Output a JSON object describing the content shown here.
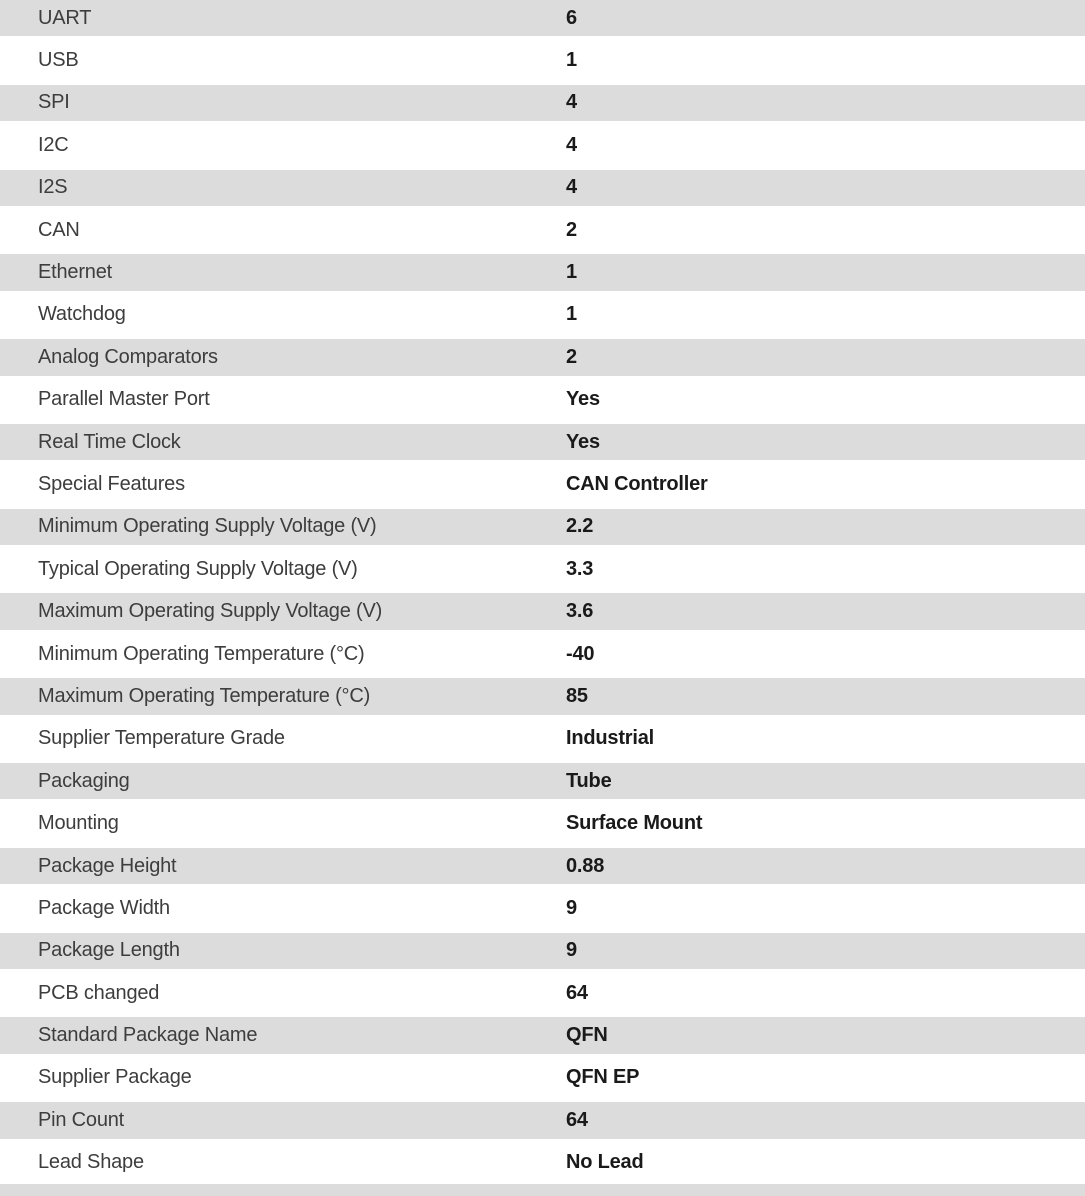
{
  "theme": {
    "page_bg": "#ffffff",
    "row_alt_bg": "#dcdcdc",
    "label_color": "#3d3d3d",
    "value_color": "#1a1a1a"
  },
  "spec_table": {
    "rows": [
      {
        "label": "UART",
        "value": "6"
      },
      {
        "label": "USB",
        "value": "1"
      },
      {
        "label": "SPI",
        "value": "4"
      },
      {
        "label": "I2C",
        "value": "4"
      },
      {
        "label": "I2S",
        "value": "4"
      },
      {
        "label": "CAN",
        "value": "2"
      },
      {
        "label": "Ethernet",
        "value": "1"
      },
      {
        "label": "Watchdog",
        "value": "1"
      },
      {
        "label": "Analog Comparators",
        "value": "2"
      },
      {
        "label": "Parallel Master Port",
        "value": "Yes"
      },
      {
        "label": "Real Time Clock",
        "value": "Yes"
      },
      {
        "label": "Special Features",
        "value": "CAN Controller"
      },
      {
        "label": "Minimum Operating Supply Voltage (V)",
        "value": "2.2"
      },
      {
        "label": "Typical Operating Supply Voltage (V)",
        "value": "3.3"
      },
      {
        "label": "Maximum Operating Supply Voltage (V)",
        "value": "3.6"
      },
      {
        "label": "Minimum Operating Temperature (°C)",
        "value": "-40"
      },
      {
        "label": "Maximum Operating Temperature (°C)",
        "value": "85"
      },
      {
        "label": "Supplier Temperature Grade",
        "value": "Industrial"
      },
      {
        "label": "Packaging",
        "value": "Tube"
      },
      {
        "label": "Mounting",
        "value": "Surface Mount"
      },
      {
        "label": "Package Height",
        "value": "0.88"
      },
      {
        "label": "Package Width",
        "value": "9"
      },
      {
        "label": "Package Length",
        "value": "9"
      },
      {
        "label": "PCB changed",
        "value": "64"
      },
      {
        "label": "Standard Package Name",
        "value": "QFN"
      },
      {
        "label": "Supplier Package",
        "value": "QFN EP"
      },
      {
        "label": "Pin Count",
        "value": "64"
      },
      {
        "label": "Lead Shape",
        "value": "No Lead"
      }
    ]
  }
}
